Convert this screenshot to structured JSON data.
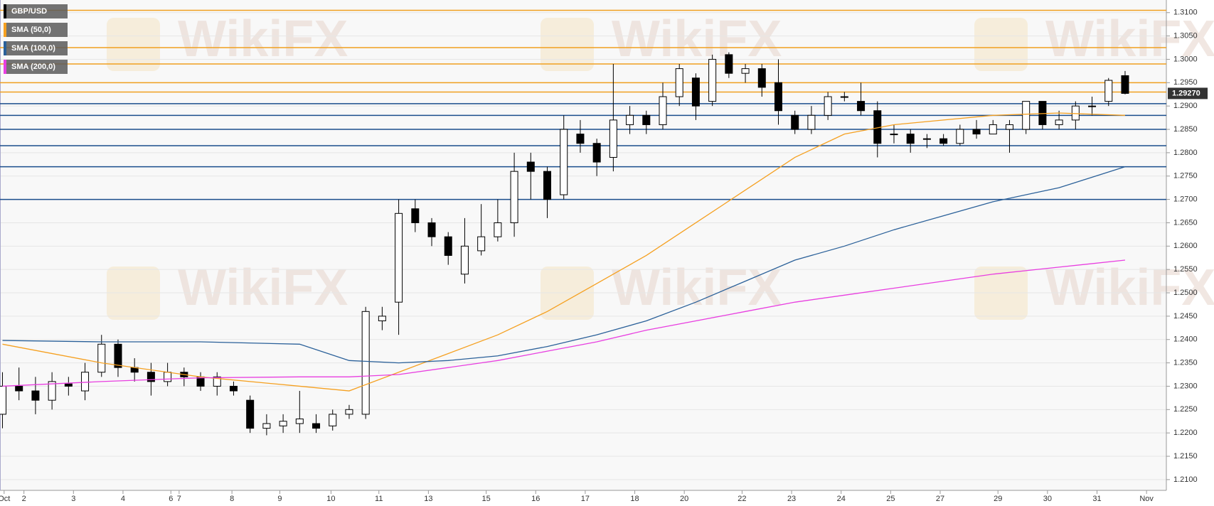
{
  "chart_data": {
    "type": "candlestick",
    "watermark": "WikiFX",
    "series": [
      {
        "name": "GBP/USD",
        "color": "#000000",
        "ohlc": [
          [
            1.224,
            1.233,
            1.221,
            1.23
          ],
          [
            1.23,
            1.234,
            1.227,
            1.229
          ],
          [
            1.229,
            1.232,
            1.224,
            1.227
          ],
          [
            1.227,
            1.233,
            1.225,
            1.231
          ],
          [
            1.2305,
            1.232,
            1.228,
            1.23
          ],
          [
            1.229,
            1.235,
            1.227,
            1.233
          ],
          [
            1.233,
            1.241,
            1.232,
            1.239
          ],
          [
            1.239,
            1.24,
            1.232,
            1.234
          ],
          [
            1.234,
            1.236,
            1.231,
            1.233
          ],
          [
            1.233,
            1.235,
            1.228,
            1.231
          ],
          [
            1.231,
            1.235,
            1.23,
            1.233
          ],
          [
            1.233,
            1.234,
            1.23,
            1.232
          ],
          [
            1.232,
            1.233,
            1.229,
            1.23
          ],
          [
            1.23,
            1.233,
            1.228,
            1.232
          ],
          [
            1.23,
            1.231,
            1.228,
            1.229
          ],
          [
            1.227,
            1.228,
            1.22,
            1.221
          ],
          [
            1.221,
            1.224,
            1.2195,
            1.222
          ],
          [
            1.2215,
            1.224,
            1.22,
            1.2225
          ],
          [
            1.222,
            1.229,
            1.22,
            1.223
          ],
          [
            1.222,
            1.224,
            1.22,
            1.221
          ],
          [
            1.2215,
            1.225,
            1.2205,
            1.224
          ],
          [
            1.224,
            1.226,
            1.223,
            1.225
          ],
          [
            1.224,
            1.247,
            1.223,
            1.246
          ],
          [
            1.244,
            1.247,
            1.242,
            1.245
          ],
          [
            1.248,
            1.27,
            1.241,
            1.267
          ],
          [
            1.268,
            1.27,
            1.263,
            1.265
          ],
          [
            1.265,
            1.266,
            1.26,
            1.262
          ],
          [
            1.262,
            1.263,
            1.256,
            1.258
          ],
          [
            1.254,
            1.266,
            1.252,
            1.26
          ],
          [
            1.259,
            1.269,
            1.258,
            1.262
          ],
          [
            1.262,
            1.27,
            1.261,
            1.265
          ],
          [
            1.265,
            1.28,
            1.262,
            1.276
          ],
          [
            1.278,
            1.28,
            1.27,
            1.276
          ],
          [
            1.276,
            1.277,
            1.266,
            1.27
          ],
          [
            1.271,
            1.288,
            1.27,
            1.285
          ],
          [
            1.284,
            1.287,
            1.28,
            1.282
          ],
          [
            1.282,
            1.283,
            1.275,
            1.278
          ],
          [
            1.279,
            1.299,
            1.276,
            1.287
          ],
          [
            1.286,
            1.29,
            1.284,
            1.288
          ],
          [
            1.288,
            1.289,
            1.284,
            1.286
          ],
          [
            1.286,
            1.295,
            1.285,
            1.292
          ],
          [
            1.292,
            1.299,
            1.29,
            1.298
          ],
          [
            1.296,
            1.297,
            1.287,
            1.29
          ],
          [
            1.291,
            1.301,
            1.29,
            1.3
          ],
          [
            1.301,
            1.3015,
            1.296,
            1.297
          ],
          [
            1.297,
            1.299,
            1.295,
            1.298
          ],
          [
            1.298,
            1.299,
            1.292,
            1.294
          ],
          [
            1.295,
            1.3,
            1.286,
            1.289
          ],
          [
            1.288,
            1.289,
            1.284,
            1.285
          ],
          [
            1.285,
            1.29,
            1.284,
            1.288
          ],
          [
            1.288,
            1.293,
            1.287,
            1.292
          ],
          [
            1.292,
            1.293,
            1.291,
            1.292
          ],
          [
            1.291,
            1.295,
            1.288,
            1.289
          ],
          [
            1.289,
            1.291,
            1.279,
            1.282
          ],
          [
            1.284,
            1.286,
            1.282,
            1.284
          ],
          [
            1.284,
            1.285,
            1.28,
            1.282
          ],
          [
            1.283,
            1.284,
            1.281,
            1.283
          ],
          [
            1.283,
            1.284,
            1.2815,
            1.282
          ],
          [
            1.282,
            1.286,
            1.2815,
            1.285
          ],
          [
            1.285,
            1.287,
            1.283,
            1.284
          ],
          [
            1.284,
            1.287,
            1.284,
            1.286
          ],
          [
            1.285,
            1.287,
            1.28,
            1.286
          ],
          [
            1.285,
            1.291,
            1.284,
            1.291
          ],
          [
            1.291,
            1.291,
            1.285,
            1.286
          ],
          [
            1.286,
            1.289,
            1.285,
            1.287
          ],
          [
            1.287,
            1.291,
            1.285,
            1.29
          ],
          [
            1.29,
            1.292,
            1.288,
            1.29
          ],
          [
            1.291,
            1.296,
            1.29,
            1.2955
          ],
          [
            1.2965,
            1.2975,
            1.2925,
            1.2927
          ]
        ]
      },
      {
        "name": "SMA (50,0)",
        "color": "#f5a020",
        "x": [
          0,
          6,
          12,
          18,
          21,
          24,
          27,
          30,
          33,
          36,
          39,
          42,
          45,
          48,
          51,
          54,
          57,
          60,
          64,
          68
        ],
        "values": [
          1.239,
          1.235,
          1.232,
          1.23,
          1.229,
          1.233,
          1.237,
          1.241,
          1.246,
          1.252,
          1.258,
          1.265,
          1.272,
          1.279,
          1.284,
          1.286,
          1.287,
          1.288,
          1.2885,
          1.288
        ]
      },
      {
        "name": "SMA (100,0)",
        "color": "#2a6099",
        "x": [
          0,
          6,
          12,
          18,
          21,
          24,
          27,
          30,
          33,
          36,
          39,
          42,
          45,
          48,
          51,
          54,
          57,
          60,
          64,
          68
        ],
        "values": [
          1.2398,
          1.2395,
          1.2395,
          1.239,
          1.2355,
          1.235,
          1.2355,
          1.2365,
          1.2385,
          1.241,
          1.244,
          1.248,
          1.2525,
          1.257,
          1.26,
          1.2635,
          1.2665,
          1.2695,
          1.2725,
          1.277
        ]
      },
      {
        "name": "SMA (200,0)",
        "color": "#e83ee0",
        "x": [
          0,
          6,
          12,
          18,
          21,
          24,
          27,
          30,
          33,
          36,
          39,
          42,
          45,
          48,
          51,
          54,
          57,
          60,
          64,
          68
        ],
        "values": [
          1.23,
          1.231,
          1.2318,
          1.232,
          1.232,
          1.2325,
          1.234,
          1.2355,
          1.2375,
          1.2395,
          1.242,
          1.244,
          1.246,
          1.248,
          1.2495,
          1.251,
          1.2525,
          1.254,
          1.2555,
          1.257
        ]
      }
    ],
    "levels": [
      {
        "value": 1.3105,
        "color": "#f0a020"
      },
      {
        "value": 1.3025,
        "color": "#f0a020"
      },
      {
        "value": 1.299,
        "color": "#f0a020"
      },
      {
        "value": 1.295,
        "color": "#f0a020"
      },
      {
        "value": 1.293,
        "color": "#f0a020"
      },
      {
        "value": 1.2905,
        "color": "#1a4d8c"
      },
      {
        "value": 1.288,
        "color": "#1a4d8c"
      },
      {
        "value": 1.285,
        "color": "#1a4d8c"
      },
      {
        "value": 1.2815,
        "color": "#1a4d8c"
      },
      {
        "value": 1.277,
        "color": "#1a4d8c"
      },
      {
        "value": 1.27,
        "color": "#1a4d8c"
      }
    ],
    "last_price": {
      "value": 1.2927,
      "label": "1.29270"
    },
    "xlim": [
      -0.15,
      70.5
    ],
    "xticks": [
      {
        "value": 0.1,
        "label": "Oct"
      },
      {
        "value": 1.3,
        "label": "2"
      },
      {
        "value": 4.3,
        "label": "3"
      },
      {
        "value": 7.3,
        "label": "4"
      },
      {
        "value": 10.2,
        "label": "6"
      },
      {
        "value": 10.7,
        "label": "7"
      },
      {
        "value": 13.9,
        "label": "8"
      },
      {
        "value": 16.8,
        "label": "9"
      },
      {
        "value": 19.9,
        "label": "10"
      },
      {
        "value": 22.8,
        "label": "11"
      },
      {
        "value": 25.8,
        "label": "13"
      },
      {
        "value": 29.3,
        "label": "15"
      },
      {
        "value": 32.3,
        "label": "16"
      },
      {
        "value": 35.3,
        "label": "17"
      },
      {
        "value": 38.3,
        "label": "18"
      },
      {
        "value": 41.3,
        "label": "20"
      },
      {
        "value": 44.8,
        "label": "22"
      },
      {
        "value": 47.8,
        "label": "23"
      },
      {
        "value": 50.8,
        "label": "24"
      },
      {
        "value": 53.8,
        "label": "25"
      },
      {
        "value": 56.8,
        "label": "27"
      },
      {
        "value": 60.3,
        "label": "29"
      },
      {
        "value": 63.3,
        "label": "30"
      },
      {
        "value": 66.3,
        "label": "31"
      },
      {
        "value": 69.3,
        "label": "Nov"
      }
    ],
    "ylim": [
      1.2077,
      1.3127
    ],
    "yticks": [
      {
        "value": 1.21,
        "label": "1.2100"
      },
      {
        "value": 1.215,
        "label": "1.2150"
      },
      {
        "value": 1.22,
        "label": "1.2200"
      },
      {
        "value": 1.225,
        "label": "1.2250"
      },
      {
        "value": 1.23,
        "label": "1.2300"
      },
      {
        "value": 1.235,
        "label": "1.2350"
      },
      {
        "value": 1.24,
        "label": "1.2400"
      },
      {
        "value": 1.245,
        "label": "1.2450"
      },
      {
        "value": 1.25,
        "label": "1.2500"
      },
      {
        "value": 1.255,
        "label": "1.2550"
      },
      {
        "value": 1.26,
        "label": "1.2600"
      },
      {
        "value": 1.265,
        "label": "1.2650"
      },
      {
        "value": 1.27,
        "label": "1.2700"
      },
      {
        "value": 1.275,
        "label": "1.2750"
      },
      {
        "value": 1.28,
        "label": "1.2800"
      },
      {
        "value": 1.285,
        "label": "1.2850"
      },
      {
        "value": 1.29,
        "label": "1.2900"
      },
      {
        "value": 1.295,
        "label": "1.2950"
      },
      {
        "value": 1.3,
        "label": "1.3000"
      },
      {
        "value": 1.305,
        "label": "1.3050"
      },
      {
        "value": 1.31,
        "label": "1.3100"
      }
    ],
    "grid": true
  }
}
